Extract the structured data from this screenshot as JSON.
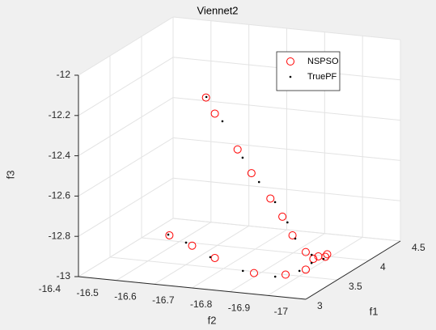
{
  "chart_data": {
    "type": "scatter3d",
    "title": "Viennet2",
    "xlabel": "f1",
    "ylabel": "f2",
    "zlabel": "f3",
    "xlim": [
      3,
      4.5
    ],
    "xticks": [
      3,
      3.5,
      4,
      4.5
    ],
    "ylim": [
      -17,
      -16.4
    ],
    "yticks": [
      -16.4,
      -16.5,
      -16.6,
      -16.7,
      -16.8,
      -16.9,
      -17
    ],
    "zlim": [
      -13,
      -12
    ],
    "zticks": [
      -13,
      -12.8,
      -12.6,
      -12.4,
      -12.2,
      -12
    ],
    "grid": true,
    "legend": "northeast",
    "series": [
      {
        "name": "NSPSO",
        "color": "#ff0000",
        "marker": "circle",
        "x": [
          3.1,
          3.12,
          3.18,
          3.22,
          3.28,
          3.35,
          3.45,
          3.6,
          3.8,
          4.0,
          3.0,
          3.0,
          3.0,
          3.02,
          3.1,
          3.3,
          3.6,
          3.85
        ],
        "y": [
          -16.72,
          -16.74,
          -16.79,
          -16.82,
          -16.86,
          -16.88,
          -16.89,
          -16.9,
          -16.9,
          -16.89,
          -16.64,
          -16.7,
          -16.76,
          -16.86,
          -16.93,
          -16.95,
          -16.92,
          -16.91
        ],
        "z": [
          -12.07,
          -12.15,
          -12.33,
          -12.45,
          -12.58,
          -12.68,
          -12.79,
          -12.9,
          -12.96,
          -12.99,
          -12.75,
          -12.79,
          -12.84,
          -12.9,
          -12.91,
          -12.92,
          -12.93,
          -12.97
        ]
      },
      {
        "name": "TruePF",
        "color": "#000000",
        "marker": "dot",
        "x": [
          3.1,
          3.15,
          3.2,
          3.25,
          3.3,
          3.4,
          3.5,
          3.7,
          3.9,
          3.0,
          3.0,
          3.0,
          3.0,
          3.05,
          3.2,
          3.5
        ],
        "y": [
          -16.721,
          -16.755,
          -16.8,
          -16.835,
          -16.869,
          -16.885,
          -16.889,
          -16.899,
          -16.897,
          -16.637,
          -16.684,
          -16.748,
          -16.834,
          -16.911,
          -16.95,
          -16.932
        ],
        "z": [
          -12.067,
          -12.191,
          -12.373,
          -12.497,
          -12.6,
          -12.717,
          -12.816,
          -12.933,
          -12.992,
          -12.747,
          -12.778,
          -12.838,
          -12.89,
          -12.914,
          -12.907,
          -12.929
        ]
      }
    ]
  }
}
